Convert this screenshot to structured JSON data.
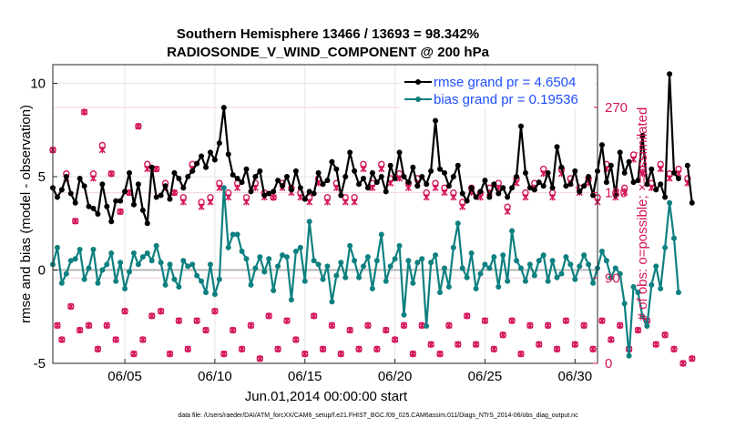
{
  "chart_data": {
    "type": "line",
    "title": "Southern Hemisphere 13466 / 13693 = 98.342%",
    "subtitle": "RADIOSONDE_V_WIND_COMPONENT @ 200 hPa",
    "xlabel": "Jun.01,2014 00:00:00 start",
    "ylabel": "rmse and bias (model - observation)",
    "ylabel_right": "# of obs: o=possible; ×=assimilated",
    "footer": "data file: /Users/raeder/DAI/ATM_forcXX/CAM6_setup/f.e21.FHIST_BGC.f09_025.CAM6assim.011/Diags_NTrS_2014-06/obs_diag_output.nc",
    "xlim": [
      1,
      31.25
    ],
    "ylim": [
      -5,
      11
    ],
    "ylim_right": [
      0,
      315
    ],
    "x_ticks": [
      5,
      10,
      15,
      20,
      25,
      30
    ],
    "x_tick_labels": [
      "06/05",
      "06/10",
      "06/15",
      "06/20",
      "06/25",
      "06/30"
    ],
    "y_ticks": [
      -5,
      0,
      5,
      10
    ],
    "y_tick_labels": [
      "-5",
      "0",
      "5",
      "10"
    ],
    "y_ticks_right": [
      0,
      90,
      180,
      270
    ],
    "y_tick_labels_right": [
      "0",
      "90",
      "180",
      "270"
    ],
    "x_start": 1,
    "x_step": 0.25,
    "legend_position": "top-right",
    "series": [
      {
        "name": "rmse",
        "legend": "rmse grand pr = 4.6504",
        "color": "#000000",
        "values": [
          4.4,
          3.9,
          4.3,
          5.0,
          4.1,
          3.6,
          4.9,
          4.5,
          3.4,
          3.3,
          3.0,
          4.6,
          3.4,
          2.6,
          3.7,
          3.7,
          4.2,
          5.2,
          3.5,
          4.6,
          3.2,
          2.5,
          5.5,
          3.9,
          4.0,
          4.5,
          3.8,
          5.2,
          4.9,
          4.4,
          5.0,
          5.3,
          5.7,
          6.1,
          5.5,
          6.3,
          5.9,
          6.8,
          8.7,
          6.2,
          5.1,
          4.9,
          4.7,
          5.4,
          4.2,
          5.0,
          5.3,
          4.0,
          4.1,
          4.2,
          4.8,
          4.5,
          5.0,
          4.3,
          5.3,
          4.4,
          3.8,
          4.2,
          4.1,
          5.2,
          4.6,
          4.8,
          5.8,
          5.4,
          4.0,
          5.0,
          6.3,
          5.3,
          4.6,
          4.9,
          4.4,
          5.2,
          4.7,
          5.0,
          4.2,
          5.6,
          4.9,
          6.3,
          5.0,
          4.7,
          5.5,
          4.5,
          5.0,
          4.6,
          5.3,
          8.0,
          5.4,
          5.2,
          4.5,
          5.0,
          5.6,
          4.1,
          3.7,
          4.4,
          3.9,
          4.2,
          4.8,
          3.9,
          4.6,
          4.1,
          4.4,
          3.9,
          4.4,
          5.0,
          7.7,
          5.2,
          4.4,
          4.3,
          4.7,
          4.5,
          5.2,
          4.4,
          6.6,
          5.5,
          4.5,
          4.6,
          5.3,
          4.2,
          4.5,
          5.0,
          4.0,
          5.3,
          6.7,
          4.7,
          5.6,
          4.0,
          6.3,
          5.2,
          5.8,
          4.7,
          4.8,
          7.2,
          4.6,
          5.4,
          4.3,
          4.6,
          3.9,
          10.5,
          5.2,
          4.9,
          4.3,
          5.6,
          3.6
        ],
        "missing_at": [
          140
        ]
      },
      {
        "name": "bias",
        "legend": "bias grand pr = 0.19536",
        "color": "#0e8080",
        "values": [
          0.3,
          1.2,
          -0.7,
          -0.2,
          0.5,
          0.6,
          1.1,
          -0.5,
          0.1,
          1.1,
          -0.7,
          0.0,
          0.3,
          0.9,
          -0.6,
          0.4,
          -1.0,
          -0.1,
          0.9,
          0.3,
          0.7,
          0.9,
          0.5,
          1.3,
          0.4,
          -0.8,
          0.3,
          -0.5,
          -0.9,
          0.5,
          0.2,
          0.3,
          -0.3,
          -0.6,
          -1.2,
          0.3,
          -1.3,
          -0.5,
          4.4,
          1.2,
          1.9,
          1.9,
          1.0,
          0.6,
          -0.8,
          0.1,
          0.7,
          -0.1,
          0.6,
          -1.1,
          0.2,
          0.8,
          0.7,
          -1.6,
          1.0,
          1.2,
          -0.6,
          2.6,
          0.5,
          0.3,
          -0.5,
          0.2,
          -1.7,
          -0.3,
          0.4,
          -0.4,
          1.3,
          0.5,
          -0.4,
          0.2,
          0.7,
          -1.0,
          0.5,
          1.9,
          -0.6,
          0.2,
          0.6,
          1.3,
          -2.4,
          0.5,
          -0.7,
          0.4,
          0.6,
          -3.0,
          0.4,
          0.8,
          -1.2,
          0.1,
          -0.9,
          1.2,
          2.5,
          0.1,
          -0.4,
          0.9,
          -1.0,
          -0.2,
          0.3,
          0.1,
          0.7,
          -0.9,
          0.8,
          -0.6,
          2.1,
          0.5,
          0.1,
          -0.6,
          0.3,
          -0.3,
          0.5,
          0.8,
          -0.6,
          0.5,
          -0.4,
          -0.2,
          0.7,
          0.3,
          -0.5,
          0.2,
          0.8,
          0.3,
          -0.7,
          0.1,
          1.0,
          0.5,
          -0.4,
          0.1,
          -0.2,
          -1.8,
          -4.6,
          -0.9,
          -1.2,
          -2.5,
          -3.0,
          -0.8,
          0.2,
          -1.0,
          1.2,
          3.6,
          1.7,
          -1.2,
          -0.7
        ],
        "missing_at": [
          140
        ]
      }
    ],
    "obs_series": [
      {
        "name": "possible",
        "marker": "o",
        "color": "#d4145a",
        "axis": "right",
        "values": [
          225,
          40,
          25,
          200,
          60,
          150,
          35,
          265,
          40,
          200,
          15,
          230,
          40,
          200,
          25,
          160,
          55,
          180,
          10,
          250,
          25,
          210,
          50,
          205,
          55,
          190,
          10,
          180,
          45,
          175,
          15,
          210,
          45,
          170,
          35,
          175,
          55,
          190,
          10,
          180,
          35,
          190,
          15,
          175,
          40,
          190,
          5,
          180,
          50,
          175,
          15,
          190,
          45,
          185,
          25,
          180,
          10,
          175,
          50,
          195,
          15,
          175,
          40,
          190,
          10,
          175,
          35,
          175,
          15,
          210,
          40,
          190,
          15,
          210,
          35,
          195,
          25,
          200,
          40,
          190,
          10,
          195,
          40,
          180,
          20,
          190,
          10,
          185,
          40,
          180,
          20,
          170,
          50,
          185,
          20,
          180,
          45,
          185,
          15,
          190,
          30,
          165,
          45,
          195,
          10,
          180,
          40,
          190,
          20,
          205,
          40,
          180,
          15,
          205,
          45,
          195,
          20,
          185,
          40,
          195,
          15,
          175,
          45,
          210,
          25,
          180,
          40,
          185,
          15,
          220,
          35,
          205,
          45,
          190,
          20,
          210,
          30,
          200,
          15,
          205,
          0,
          195,
          5
        ],
        "missing_at": []
      },
      {
        "name": "assimilated",
        "marker": "×",
        "color": "#d4145a",
        "axis": "right",
        "values": [
          225,
          40,
          25,
          195,
          60,
          150,
          35,
          265,
          40,
          195,
          15,
          225,
          40,
          200,
          25,
          160,
          55,
          180,
          10,
          250,
          25,
          205,
          50,
          205,
          55,
          185,
          10,
          180,
          45,
          170,
          15,
          205,
          45,
          165,
          35,
          170,
          55,
          185,
          10,
          175,
          35,
          185,
          15,
          170,
          40,
          185,
          5,
          175,
          50,
          175,
          15,
          185,
          45,
          180,
          25,
          175,
          10,
          170,
          50,
          190,
          15,
          170,
          40,
          185,
          10,
          170,
          35,
          170,
          15,
          205,
          40,
          185,
          15,
          205,
          35,
          190,
          25,
          195,
          40,
          185,
          10,
          190,
          40,
          175,
          20,
          185,
          10,
          180,
          40,
          175,
          20,
          165,
          50,
          180,
          20,
          175,
          45,
          180,
          15,
          185,
          30,
          160,
          45,
          190,
          10,
          175,
          40,
          185,
          20,
          200,
          40,
          175,
          15,
          200,
          45,
          190,
          20,
          180,
          40,
          190,
          15,
          170,
          45,
          205,
          25,
          175,
          40,
          180,
          15,
          215,
          35,
          200,
          45,
          185,
          20,
          205,
          30,
          195,
          15,
          200,
          0,
          190,
          5
        ],
        "missing_at": []
      }
    ]
  }
}
